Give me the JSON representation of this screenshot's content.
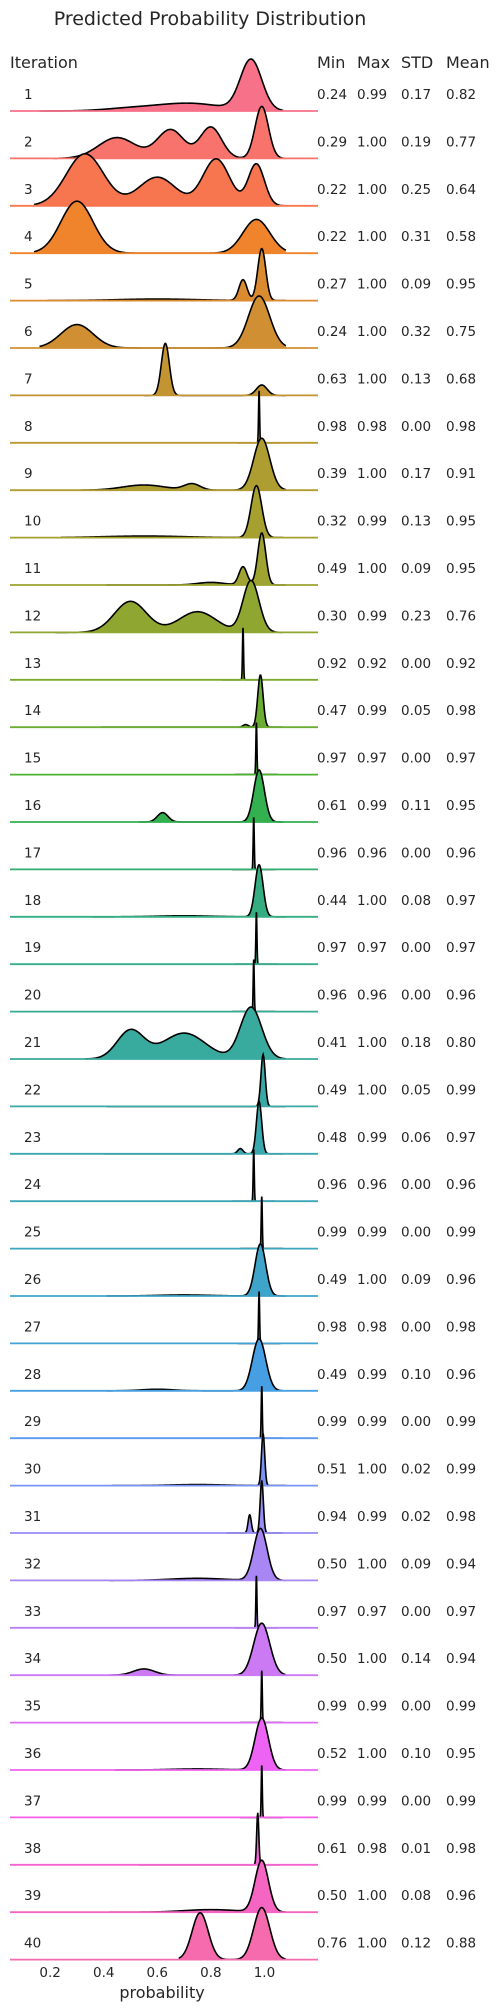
{
  "chart_data": {
    "type": "ridgeline",
    "title": "Predicted Probability Distribution",
    "row_header": "Iteration",
    "stat_headers": [
      "Min",
      "Max",
      "STD",
      "Mean"
    ],
    "xlabel": "probability",
    "x_ticks": [
      0.2,
      0.4,
      0.6,
      0.8,
      1.0
    ],
    "x_tick_labels": [
      "0.2",
      "0.4",
      "0.6",
      "0.8",
      "1.0"
    ],
    "xlim": [
      0.05,
      1.2
    ],
    "rows": [
      {
        "label": "1",
        "stats": [
          "0.24",
          "0.99",
          "0.17",
          "0.82"
        ],
        "color": "#f77189",
        "peaks": [
          [
            0.5,
            0.1,
            0.05
          ],
          [
            0.72,
            0.12,
            0.15
          ],
          [
            0.95,
            0.04,
            1.0
          ]
        ]
      },
      {
        "label": "2",
        "stats": [
          "0.29",
          "1.00",
          "0.19",
          "0.77"
        ],
        "color": "#f7736b",
        "peaks": [
          [
            0.45,
            0.07,
            0.4
          ],
          [
            0.65,
            0.05,
            0.55
          ],
          [
            0.8,
            0.04,
            0.6
          ],
          [
            0.99,
            0.025,
            1.0
          ]
        ]
      },
      {
        "label": "3",
        "stats": [
          "0.22",
          "1.00",
          "0.25",
          "0.64"
        ],
        "color": "#f7754f",
        "peaks": [
          [
            0.33,
            0.07,
            1.0
          ],
          [
            0.6,
            0.07,
            0.55
          ],
          [
            0.82,
            0.05,
            0.9
          ],
          [
            0.97,
            0.03,
            0.8
          ]
        ]
      },
      {
        "label": "4",
        "stats": [
          "0.22",
          "1.00",
          "0.31",
          "0.58"
        ],
        "color": "#f0842c",
        "peaks": [
          [
            0.3,
            0.06,
            1.0
          ],
          [
            0.97,
            0.05,
            0.65
          ]
        ]
      },
      {
        "label": "5",
        "stats": [
          "0.27",
          "1.00",
          "0.09",
          "0.95"
        ],
        "color": "#db8b2f",
        "peaks": [
          [
            0.6,
            0.15,
            0.03
          ],
          [
            0.92,
            0.015,
            0.4
          ],
          [
            0.99,
            0.015,
            1.0
          ]
        ]
      },
      {
        "label": "6",
        "stats": [
          "0.24",
          "1.00",
          "0.32",
          "0.75"
        ],
        "color": "#d08f32",
        "peaks": [
          [
            0.3,
            0.06,
            0.45
          ],
          [
            0.98,
            0.04,
            1.0
          ]
        ]
      },
      {
        "label": "7",
        "stats": [
          "0.63",
          "1.00",
          "0.13",
          "0.68"
        ],
        "color": "#c39532",
        "peaks": [
          [
            0.63,
            0.015,
            1.0
          ],
          [
            0.99,
            0.02,
            0.2
          ]
        ]
      },
      {
        "label": "8",
        "stats": [
          "0.98",
          "0.98",
          "0.00",
          "0.98"
        ],
        "color": "#b89a31",
        "peaks": [
          [
            0.98,
            0.002,
            1.0
          ]
        ]
      },
      {
        "label": "9",
        "stats": [
          "0.39",
          "1.00",
          "0.17",
          "0.91"
        ],
        "color": "#ae9d31",
        "peaks": [
          [
            0.55,
            0.08,
            0.1
          ],
          [
            0.73,
            0.03,
            0.12
          ],
          [
            0.99,
            0.03,
            1.0
          ]
        ]
      },
      {
        "label": "10",
        "stats": [
          "0.32",
          "0.99",
          "0.13",
          "0.95"
        ],
        "color": "#a6a031",
        "peaks": [
          [
            0.55,
            0.15,
            0.03
          ],
          [
            0.97,
            0.02,
            1.0
          ]
        ]
      },
      {
        "label": "11",
        "stats": [
          "0.49",
          "1.00",
          "0.09",
          "0.95"
        ],
        "color": "#9ea331",
        "peaks": [
          [
            0.8,
            0.05,
            0.05
          ],
          [
            0.92,
            0.015,
            0.35
          ],
          [
            0.99,
            0.015,
            1.0
          ]
        ]
      },
      {
        "label": "12",
        "stats": [
          "0.30",
          "0.99",
          "0.23",
          "0.76"
        ],
        "color": "#8fa731",
        "peaks": [
          [
            0.5,
            0.06,
            0.6
          ],
          [
            0.75,
            0.07,
            0.4
          ],
          [
            0.95,
            0.03,
            1.0
          ]
        ]
      },
      {
        "label": "13",
        "stats": [
          "0.92",
          "0.92",
          "0.00",
          "0.92"
        ],
        "color": "#7ea931",
        "peaks": [
          [
            0.92,
            0.002,
            1.0
          ]
        ]
      },
      {
        "label": "14",
        "stats": [
          "0.47",
          "0.99",
          "0.05",
          "0.98"
        ],
        "color": "#6aad31",
        "peaks": [
          [
            0.93,
            0.01,
            0.05
          ],
          [
            0.985,
            0.01,
            1.0
          ]
        ]
      },
      {
        "label": "15",
        "stats": [
          "0.97",
          "0.97",
          "0.00",
          "0.97"
        ],
        "color": "#4eb031",
        "peaks": [
          [
            0.97,
            0.002,
            1.0
          ]
        ]
      },
      {
        "label": "16",
        "stats": [
          "0.61",
          "0.99",
          "0.11",
          "0.95"
        ],
        "color": "#33b04f",
        "peaks": [
          [
            0.62,
            0.02,
            0.18
          ],
          [
            0.98,
            0.02,
            1.0
          ]
        ]
      },
      {
        "label": "17",
        "stats": [
          "0.96",
          "0.96",
          "0.00",
          "0.96"
        ],
        "color": "#34ae6e",
        "peaks": [
          [
            0.96,
            0.002,
            1.0
          ]
        ]
      },
      {
        "label": "18",
        "stats": [
          "0.44",
          "1.00",
          "0.08",
          "0.97"
        ],
        "color": "#35ad80",
        "peaks": [
          [
            0.7,
            0.1,
            0.02
          ],
          [
            0.98,
            0.015,
            1.0
          ]
        ]
      },
      {
        "label": "19",
        "stats": [
          "0.97",
          "0.97",
          "0.00",
          "0.97"
        ],
        "color": "#36ac8c",
        "peaks": [
          [
            0.97,
            0.002,
            1.0
          ]
        ]
      },
      {
        "label": "20",
        "stats": [
          "0.96",
          "0.96",
          "0.00",
          "0.96"
        ],
        "color": "#37ab96",
        "peaks": [
          [
            0.96,
            0.002,
            1.0
          ]
        ]
      },
      {
        "label": "21",
        "stats": [
          "0.41",
          "1.00",
          "0.18",
          "0.80"
        ],
        "color": "#38aa9e",
        "peaks": [
          [
            0.5,
            0.05,
            0.55
          ],
          [
            0.7,
            0.08,
            0.5
          ],
          [
            0.95,
            0.04,
            1.0
          ]
        ]
      },
      {
        "label": "22",
        "stats": [
          "0.49",
          "1.00",
          "0.05",
          "0.99"
        ],
        "color": "#39a9a6",
        "peaks": [
          [
            0.995,
            0.008,
            1.0
          ]
        ]
      },
      {
        "label": "23",
        "stats": [
          "0.48",
          "0.99",
          "0.06",
          "0.97"
        ],
        "color": "#3aa8ae",
        "peaks": [
          [
            0.91,
            0.01,
            0.1
          ],
          [
            0.98,
            0.01,
            1.0
          ]
        ]
      },
      {
        "label": "24",
        "stats": [
          "0.96",
          "0.96",
          "0.00",
          "0.96"
        ],
        "color": "#3ba7b7",
        "peaks": [
          [
            0.96,
            0.002,
            1.0
          ]
        ]
      },
      {
        "label": "25",
        "stats": [
          "0.99",
          "0.99",
          "0.00",
          "0.99"
        ],
        "color": "#3ca6bf",
        "peaks": [
          [
            0.99,
            0.002,
            1.0
          ]
        ]
      },
      {
        "label": "26",
        "stats": [
          "0.49",
          "1.00",
          "0.09",
          "0.96"
        ],
        "color": "#3ea4c9",
        "peaks": [
          [
            0.7,
            0.1,
            0.02
          ],
          [
            0.985,
            0.02,
            1.0
          ]
        ]
      },
      {
        "label": "27",
        "stats": [
          "0.98",
          "0.98",
          "0.00",
          "0.98"
        ],
        "color": "#41a2d5",
        "peaks": [
          [
            0.98,
            0.002,
            1.0
          ]
        ]
      },
      {
        "label": "28",
        "stats": [
          "0.49",
          "0.99",
          "0.10",
          "0.96"
        ],
        "color": "#479fe3",
        "peaks": [
          [
            0.6,
            0.06,
            0.03
          ],
          [
            0.98,
            0.025,
            1.0
          ]
        ]
      },
      {
        "label": "29",
        "stats": [
          "0.99",
          "0.99",
          "0.00",
          "0.99"
        ],
        "color": "#5a9af0",
        "peaks": [
          [
            0.99,
            0.002,
            1.0
          ]
        ]
      },
      {
        "label": "30",
        "stats": [
          "0.51",
          "1.00",
          "0.02",
          "0.99"
        ],
        "color": "#7a94f4",
        "peaks": [
          [
            0.75,
            0.1,
            0.02
          ],
          [
            0.995,
            0.006,
            1.0
          ]
        ]
      },
      {
        "label": "31",
        "stats": [
          "0.94",
          "0.99",
          "0.02",
          "0.98"
        ],
        "color": "#958df4",
        "peaks": [
          [
            0.945,
            0.006,
            0.35
          ],
          [
            0.99,
            0.006,
            1.0
          ]
        ]
      },
      {
        "label": "32",
        "stats": [
          "0.50",
          "1.00",
          "0.09",
          "0.94"
        ],
        "color": "#a887f4",
        "peaks": [
          [
            0.75,
            0.1,
            0.04
          ],
          [
            0.985,
            0.025,
            1.0
          ]
        ]
      },
      {
        "label": "33",
        "stats": [
          "0.97",
          "0.97",
          "0.00",
          "0.97"
        ],
        "color": "#bb81f4",
        "peaks": [
          [
            0.97,
            0.002,
            1.0
          ]
        ]
      },
      {
        "label": "34",
        "stats": [
          "0.50",
          "1.00",
          "0.14",
          "0.94"
        ],
        "color": "#cc79f4",
        "peaks": [
          [
            0.55,
            0.04,
            0.12
          ],
          [
            0.99,
            0.03,
            1.0
          ]
        ]
      },
      {
        "label": "35",
        "stats": [
          "0.99",
          "0.99",
          "0.00",
          "0.99"
        ],
        "color": "#dd6ff4",
        "peaks": [
          [
            0.99,
            0.002,
            1.0
          ]
        ]
      },
      {
        "label": "36",
        "stats": [
          "0.52",
          "1.00",
          "0.10",
          "0.95"
        ],
        "color": "#ed63f4",
        "peaks": [
          [
            0.75,
            0.1,
            0.02
          ],
          [
            0.99,
            0.025,
            1.0
          ]
        ]
      },
      {
        "label": "37",
        "stats": [
          "0.99",
          "0.99",
          "0.00",
          "0.99"
        ],
        "color": "#f45ee6",
        "peaks": [
          [
            0.99,
            0.002,
            1.0
          ]
        ]
      },
      {
        "label": "38",
        "stats": [
          "0.61",
          "0.98",
          "0.01",
          "0.98"
        ],
        "color": "#f562d4",
        "peaks": [
          [
            0.975,
            0.004,
            1.0
          ]
        ]
      },
      {
        "label": "39",
        "stats": [
          "0.50",
          "1.00",
          "0.08",
          "0.96"
        ],
        "color": "#f566c2",
        "peaks": [
          [
            0.8,
            0.1,
            0.05
          ],
          [
            0.99,
            0.025,
            1.0
          ]
        ]
      },
      {
        "label": "40",
        "stats": [
          "0.76",
          "1.00",
          "0.12",
          "0.88"
        ],
        "color": "#f56bad",
        "peaks": [
          [
            0.76,
            0.03,
            0.9
          ],
          [
            0.99,
            0.03,
            1.0
          ]
        ]
      }
    ]
  }
}
